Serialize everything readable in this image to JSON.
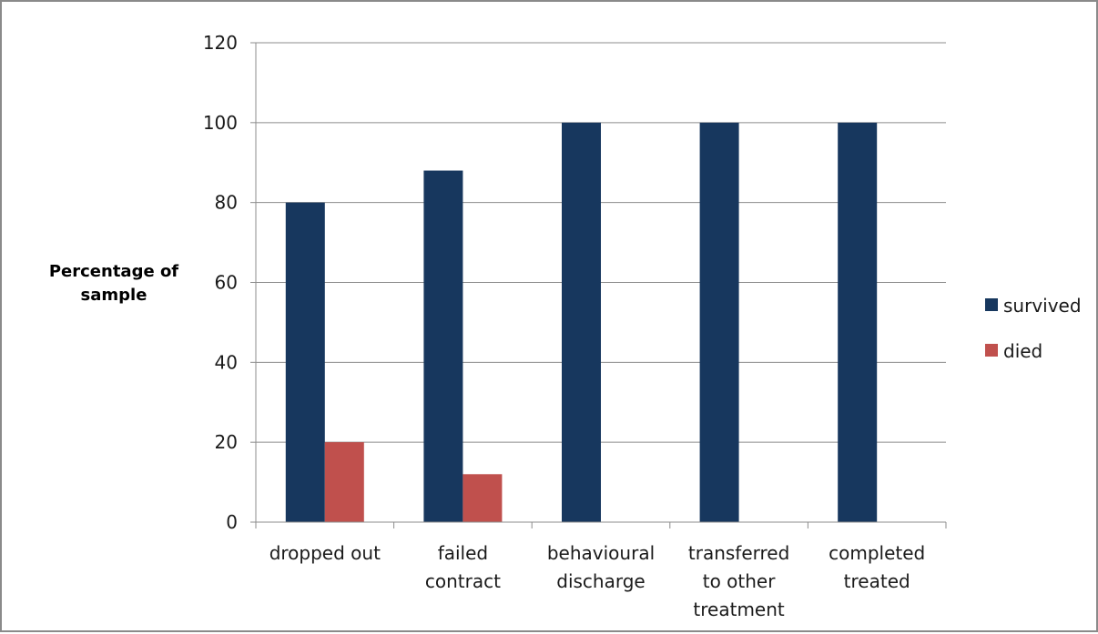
{
  "chart_data": {
    "type": "bar",
    "categories": [
      [
        "dropped out"
      ],
      [
        "failed",
        "contract"
      ],
      [
        "behavioural",
        "discharge"
      ],
      [
        "transferred",
        "to other",
        "treatment"
      ],
      [
        "completed",
        "treated"
      ]
    ],
    "series": [
      {
        "name": "survived",
        "color": "#17375e",
        "values": [
          80,
          88,
          100,
          100,
          100
        ]
      },
      {
        "name": "died",
        "color": "#c0504d",
        "values": [
          20,
          12,
          0,
          0,
          0
        ]
      }
    ],
    "title": "",
    "xlabel": "",
    "ylabel": [
      "Percentage of",
      "sample"
    ],
    "ylim": [
      0,
      120
    ],
    "yticks": [
      0,
      20,
      40,
      60,
      80,
      100,
      120
    ],
    "grid": true,
    "legend_position": "right"
  }
}
